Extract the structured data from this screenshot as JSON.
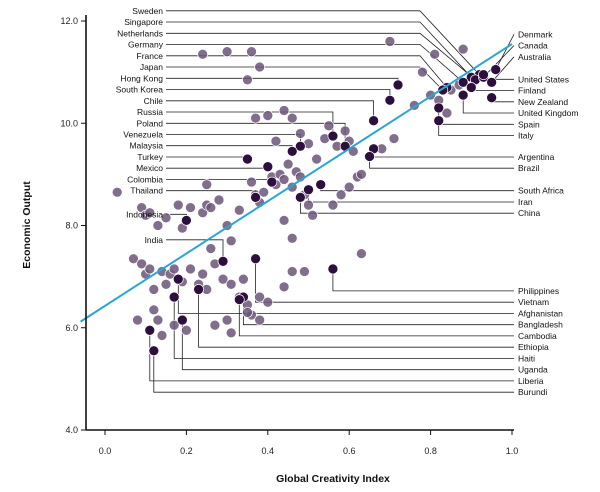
{
  "chart_data": {
    "type": "scatter",
    "title": "",
    "xlabel": "Global Creativity Index",
    "ylabel": "Economic Output",
    "xlim": [
      -0.06,
      1.0
    ],
    "ylim": [
      4.0,
      12.0
    ],
    "x_ticks": [
      "0.0",
      "0.2",
      "0.4",
      "0.6",
      "0.8",
      "1.0"
    ],
    "y_ticks": [
      "4.0",
      "6.0",
      "8.0",
      "10.0",
      "12.0"
    ],
    "grid": false,
    "colors": {
      "highlight": "#2d0f3d",
      "other": "#6b5579",
      "line": "#2aa6d6",
      "leader": "#222222"
    },
    "trendline": {
      "x0": -0.06,
      "y0": 6.12,
      "x1": 1.0,
      "y1": 11.55
    },
    "labeled_points": [
      {
        "name": "Sweden",
        "x": 0.92,
        "y": 10.95,
        "side": "left",
        "label_y": 12.2
      },
      {
        "name": "Singapore",
        "x": 0.9,
        "y": 10.9,
        "side": "left",
        "label_y": 11.98
      },
      {
        "name": "Netherlands",
        "x": 0.91,
        "y": 10.85,
        "side": "left",
        "label_y": 11.76
      },
      {
        "name": "Germany",
        "x": 0.88,
        "y": 10.8,
        "side": "left",
        "label_y": 11.54
      },
      {
        "name": "France",
        "x": 0.84,
        "y": 10.7,
        "side": "left",
        "label_y": 11.32
      },
      {
        "name": "Japan",
        "x": 0.83,
        "y": 10.65,
        "side": "left",
        "label_y": 11.1
      },
      {
        "name": "Hong Kong",
        "x": 0.72,
        "y": 10.75,
        "side": "left",
        "label_y": 10.88
      },
      {
        "name": "South Korea",
        "x": 0.7,
        "y": 10.45,
        "side": "left",
        "label_y": 10.66
      },
      {
        "name": "Chile",
        "x": 0.66,
        "y": 10.05,
        "side": "left",
        "label_y": 10.44
      },
      {
        "name": "Russia",
        "x": 0.56,
        "y": 9.75,
        "side": "left",
        "label_y": 10.22
      },
      {
        "name": "Poland",
        "x": 0.59,
        "y": 9.55,
        "side": "left",
        "label_y": 10.0
      },
      {
        "name": "Venezuela",
        "x": 0.48,
        "y": 9.55,
        "side": "left",
        "label_y": 9.78
      },
      {
        "name": "Malaysia",
        "x": 0.46,
        "y": 9.45,
        "side": "left",
        "label_y": 9.56
      },
      {
        "name": "Turkey",
        "x": 0.35,
        "y": 9.3,
        "side": "left",
        "label_y": 9.34
      },
      {
        "name": "Mexico",
        "x": 0.4,
        "y": 9.15,
        "side": "left",
        "label_y": 9.12
      },
      {
        "name": "Colombia",
        "x": 0.41,
        "y": 8.85,
        "side": "left",
        "label_y": 8.9
      },
      {
        "name": "Thailand",
        "x": 0.37,
        "y": 8.55,
        "side": "left",
        "label_y": 8.68
      },
      {
        "name": "Indonesia",
        "x": 0.2,
        "y": 8.1,
        "side": "left",
        "label_y": 8.22
      },
      {
        "name": "India",
        "x": 0.29,
        "y": 7.3,
        "side": "left",
        "label_y": 7.72
      },
      {
        "name": "Denmark",
        "x": 0.96,
        "y": 11.05,
        "side": "right",
        "label_y": 11.74
      },
      {
        "name": "Canada",
        "x": 0.93,
        "y": 10.9,
        "side": "right",
        "label_y": 11.52
      },
      {
        "name": "Australia",
        "x": 0.95,
        "y": 10.8,
        "side": "right",
        "label_y": 11.3
      },
      {
        "name": "United States",
        "x": 0.93,
        "y": 10.95,
        "side": "right",
        "label_y": 10.86
      },
      {
        "name": "Finland",
        "x": 0.9,
        "y": 10.7,
        "side": "right",
        "label_y": 10.64
      },
      {
        "name": "New Zealand",
        "x": 0.95,
        "y": 10.5,
        "side": "right",
        "label_y": 10.42
      },
      {
        "name": "United Kingdom",
        "x": 0.88,
        "y": 10.55,
        "side": "right",
        "label_y": 10.2
      },
      {
        "name": "Spain",
        "x": 0.82,
        "y": 10.3,
        "side": "right",
        "label_y": 9.98
      },
      {
        "name": "Italy",
        "x": 0.82,
        "y": 10.05,
        "side": "right",
        "label_y": 9.76
      },
      {
        "name": "Argentina",
        "x": 0.66,
        "y": 9.5,
        "side": "right",
        "label_y": 9.34
      },
      {
        "name": "Brazil",
        "x": 0.65,
        "y": 9.35,
        "side": "right",
        "label_y": 9.12
      },
      {
        "name": "South Africa",
        "x": 0.53,
        "y": 8.8,
        "side": "right",
        "label_y": 8.68
      },
      {
        "name": "Iran",
        "x": 0.5,
        "y": 8.7,
        "side": "right",
        "label_y": 8.46
      },
      {
        "name": "China",
        "x": 0.48,
        "y": 8.55,
        "side": "right",
        "label_y": 8.24
      },
      {
        "name": "Philippines",
        "x": 0.56,
        "y": 7.15,
        "side": "right",
        "label_y": 6.72
      },
      {
        "name": "Vietnam",
        "x": 0.37,
        "y": 7.35,
        "side": "right",
        "label_y": 6.5
      },
      {
        "name": "Afghanistan",
        "x": 0.18,
        "y": 6.95,
        "side": "right",
        "label_y": 6.28
      },
      {
        "name": "Bangladesh",
        "x": 0.34,
        "y": 6.6,
        "side": "right",
        "label_y": 6.06
      },
      {
        "name": "Cambodia",
        "x": 0.33,
        "y": 6.55,
        "side": "right",
        "label_y": 5.84
      },
      {
        "name": "Ethiopia",
        "x": 0.23,
        "y": 6.75,
        "side": "right",
        "label_y": 5.62
      },
      {
        "name": "Haiti",
        "x": 0.17,
        "y": 6.6,
        "side": "right",
        "label_y": 5.4
      },
      {
        "name": "Uganda",
        "x": 0.19,
        "y": 6.15,
        "side": "right",
        "label_y": 5.18
      },
      {
        "name": "Liberia",
        "x": 0.11,
        "y": 5.95,
        "side": "right",
        "label_y": 4.96
      },
      {
        "name": "Burundi",
        "x": 0.12,
        "y": 5.55,
        "side": "right",
        "label_y": 4.74
      }
    ],
    "other_points": [
      [
        0.03,
        8.65
      ],
      [
        0.09,
        8.35
      ],
      [
        0.1,
        8.2
      ],
      [
        0.11,
        8.25
      ],
      [
        0.13,
        8.0
      ],
      [
        0.15,
        8.15
      ],
      [
        0.18,
        8.4
      ],
      [
        0.19,
        7.95
      ],
      [
        0.21,
        8.35
      ],
      [
        0.24,
        8.25
      ],
      [
        0.25,
        8.4
      ],
      [
        0.26,
        8.35
      ],
      [
        0.28,
        8.5
      ],
      [
        0.25,
        8.8
      ],
      [
        0.26,
        7.55
      ],
      [
        0.3,
        8.0
      ],
      [
        0.31,
        7.7
      ],
      [
        0.33,
        8.3
      ],
      [
        0.36,
        8.85
      ],
      [
        0.37,
        8.6
      ],
      [
        0.38,
        8.45
      ],
      [
        0.39,
        8.65
      ],
      [
        0.4,
        9.15
      ],
      [
        0.41,
        8.95
      ],
      [
        0.42,
        8.8
      ],
      [
        0.43,
        9.0
      ],
      [
        0.44,
        8.9
      ],
      [
        0.45,
        9.2
      ],
      [
        0.46,
        8.75
      ],
      [
        0.47,
        9.05
      ],
      [
        0.48,
        8.95
      ],
      [
        0.49,
        8.6
      ],
      [
        0.5,
        8.4
      ],
      [
        0.51,
        8.2
      ],
      [
        0.46,
        7.75
      ],
      [
        0.44,
        8.1
      ],
      [
        0.4,
        10.15
      ],
      [
        0.42,
        9.65
      ],
      [
        0.44,
        10.25
      ],
      [
        0.46,
        10.1
      ],
      [
        0.48,
        9.8
      ],
      [
        0.5,
        9.6
      ],
      [
        0.52,
        9.3
      ],
      [
        0.54,
        9.7
      ],
      [
        0.55,
        9.95
      ],
      [
        0.57,
        9.55
      ],
      [
        0.59,
        9.85
      ],
      [
        0.6,
        9.65
      ],
      [
        0.61,
        9.45
      ],
      [
        0.62,
        8.95
      ],
      [
        0.6,
        8.75
      ],
      [
        0.58,
        8.6
      ],
      [
        0.56,
        8.4
      ],
      [
        0.63,
        9.0
      ],
      [
        0.68,
        9.5
      ],
      [
        0.71,
        9.7
      ],
      [
        0.76,
        10.35
      ],
      [
        0.8,
        10.55
      ],
      [
        0.82,
        10.45
      ],
      [
        0.85,
        10.65
      ],
      [
        0.87,
        10.75
      ],
      [
        0.3,
        11.4
      ],
      [
        0.36,
        11.4
      ],
      [
        0.38,
        11.1
      ],
      [
        0.35,
        10.85
      ],
      [
        0.24,
        11.35
      ],
      [
        0.37,
        10.1
      ],
      [
        0.7,
        11.6
      ],
      [
        0.78,
        11.0
      ],
      [
        0.81,
        11.35
      ],
      [
        0.88,
        11.45
      ],
      [
        0.84,
        10.2
      ],
      [
        0.07,
        7.35
      ],
      [
        0.09,
        7.25
      ],
      [
        0.1,
        7.05
      ],
      [
        0.11,
        7.15
      ],
      [
        0.12,
        6.75
      ],
      [
        0.14,
        7.1
      ],
      [
        0.16,
        7.05
      ],
      [
        0.17,
        7.15
      ],
      [
        0.19,
        6.9
      ],
      [
        0.21,
        7.15
      ],
      [
        0.23,
        6.85
      ],
      [
        0.24,
        7.05
      ],
      [
        0.27,
        7.25
      ],
      [
        0.29,
        6.95
      ],
      [
        0.31,
        6.85
      ],
      [
        0.33,
        6.6
      ],
      [
        0.35,
        6.45
      ],
      [
        0.36,
        6.25
      ],
      [
        0.38,
        6.6
      ],
      [
        0.4,
        6.5
      ],
      [
        0.44,
        6.8
      ],
      [
        0.46,
        7.1
      ],
      [
        0.49,
        7.1
      ],
      [
        0.63,
        7.45
      ],
      [
        0.08,
        6.15
      ],
      [
        0.12,
        6.35
      ],
      [
        0.13,
        6.15
      ],
      [
        0.14,
        5.85
      ],
      [
        0.17,
        6.05
      ],
      [
        0.2,
        5.95
      ],
      [
        0.27,
        6.05
      ],
      [
        0.3,
        6.15
      ],
      [
        0.31,
        5.9
      ],
      [
        0.35,
        6.3
      ],
      [
        0.38,
        6.15
      ],
      [
        0.15,
        6.85
      ],
      [
        0.25,
        6.75
      ],
      [
        0.34,
        6.95
      ]
    ]
  }
}
